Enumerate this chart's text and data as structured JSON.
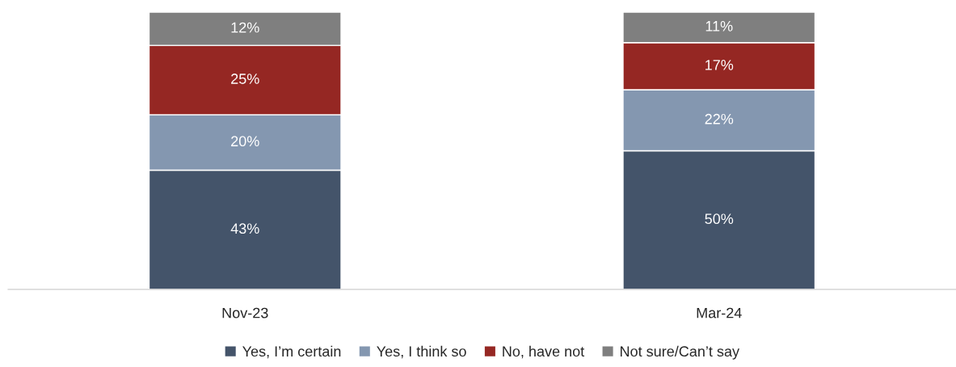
{
  "chart_data": {
    "type": "bar",
    "stacked": true,
    "legend": "bottom",
    "categories": [
      "Nov-23",
      "Mar-24"
    ],
    "series": [
      {
        "name": "Yes, I’m certain",
        "color": "#44546a",
        "values": [
          43,
          50
        ],
        "value_labels": [
          "43%",
          "50%"
        ]
      },
      {
        "name": "Yes, I think so",
        "color": "#8497b0",
        "values": [
          20,
          22
        ],
        "value_labels": [
          "20%",
          "22%"
        ]
      },
      {
        "name": "No, have not",
        "color": "#952723",
        "values": [
          25,
          17
        ],
        "value_labels": [
          "25%",
          "17%"
        ]
      },
      {
        "name": "Not sure/Can’t say",
        "color": "#7f7f7f",
        "values": [
          12,
          11
        ],
        "value_labels": [
          "12%",
          "11%"
        ]
      }
    ]
  }
}
